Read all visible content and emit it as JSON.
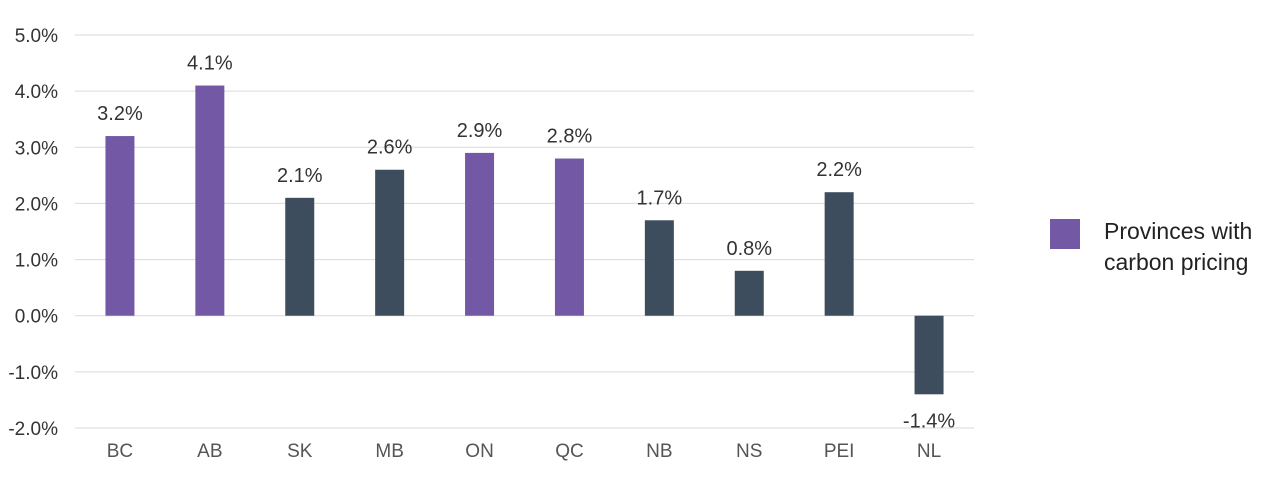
{
  "chart_data": {
    "type": "bar",
    "categories": [
      "BC",
      "AB",
      "SK",
      "MB",
      "ON",
      "QC",
      "NB",
      "NS",
      "PEI",
      "NL"
    ],
    "values": [
      3.2,
      4.1,
      2.1,
      2.6,
      2.9,
      2.8,
      1.7,
      0.8,
      2.2,
      -1.4
    ],
    "value_labels": [
      "3.2%",
      "4.1%",
      "2.1%",
      "2.6%",
      "2.9%",
      "2.8%",
      "1.7%",
      "0.8%",
      "2.2%",
      "-1.4%"
    ],
    "carbon_pricing": [
      true,
      true,
      false,
      false,
      true,
      true,
      false,
      false,
      false,
      false
    ],
    "yticks": [
      "5.0%",
      "4.0%",
      "3.0%",
      "2.0%",
      "1.0%",
      "0.0%",
      "-1.0%",
      "-2.0%"
    ],
    "ylim": [
      -2,
      5
    ],
    "grid": true,
    "legend_position": "right",
    "legend": {
      "label": "Provinces with carbon pricing"
    },
    "colors": {
      "carbon_pricing": "#7359a5",
      "other": "#3e4d5e",
      "grid": "#d9d9d9"
    }
  }
}
